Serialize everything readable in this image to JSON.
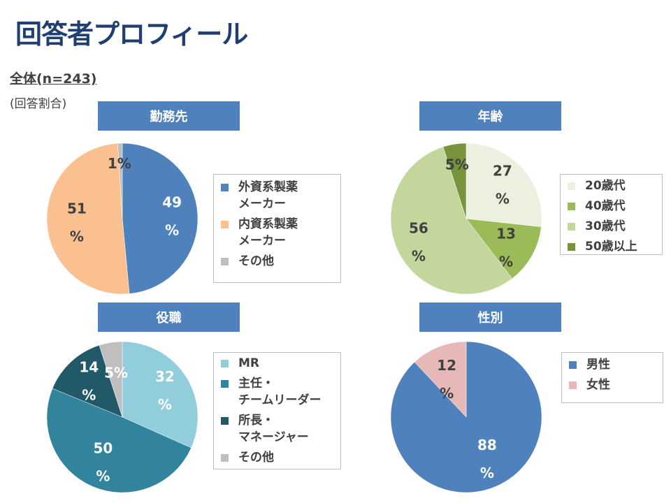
{
  "title": "回答者プロフィール",
  "subtitle": "全体(n=243)",
  "note": "(回答割合)",
  "chart_data": [
    {
      "type": "pie",
      "title": "勤務先",
      "label_color": "#ffffff",
      "slices": [
        {
          "name": "外資系製薬\nメーカー",
          "value": 49,
          "label": "49\n%",
          "color": "#4f81bd",
          "label_color": "#ffffff"
        },
        {
          "name": "内資系製薬\nメーカー",
          "value": 51,
          "label": "51\n%",
          "color": "#fac090",
          "label_color": "#404040"
        },
        {
          "name": "その他",
          "value": 1,
          "label": "1%",
          "color": "#bfbfbf",
          "label_color": "#404040"
        }
      ],
      "legend_position": "right"
    },
    {
      "type": "pie",
      "title": "年齢",
      "slices": [
        {
          "name": "20歳代",
          "value": 27,
          "label": "27\n%",
          "color": "#ebf1de",
          "label_color": "#404040"
        },
        {
          "name": "40歳代",
          "value": 13,
          "label": "13\n%",
          "color": "#9bbb59",
          "label_color": "#404040"
        },
        {
          "name": "30歳代",
          "value": 56,
          "label": "56\n%",
          "color": "#c3d69b",
          "label_color": "#404040"
        },
        {
          "name": "50歳以上",
          "value": 5,
          "label": "5%",
          "color": "#77933c",
          "label_color": "#404040"
        }
      ],
      "legend_position": "right"
    },
    {
      "type": "pie",
      "title": "役職",
      "slices": [
        {
          "name": "MR",
          "value": 32,
          "label": "32\n%",
          "color": "#92cddc",
          "label_color": "#ffffff"
        },
        {
          "name": "主任・\nチームリーダー",
          "value": 50,
          "label": "50\n%",
          "color": "#31849b",
          "label_color": "#ffffff"
        },
        {
          "name": "所長・\nマネージャー",
          "value": 14,
          "label": "14\n%",
          "color": "#215968",
          "label_color": "#ffffff"
        },
        {
          "name": "その他",
          "value": 5,
          "label": "5%",
          "color": "#bfbfbf",
          "label_color": "#ffffff"
        }
      ],
      "legend_position": "right"
    },
    {
      "type": "pie",
      "title": "性別",
      "slices": [
        {
          "name": "男性",
          "value": 88,
          "label": "88\n%",
          "color": "#4f81bd",
          "label_color": "#ffffff"
        },
        {
          "name": "女性",
          "value": 12,
          "label": "12\n%",
          "color": "#e6b9b8",
          "label_color": "#404040"
        }
      ],
      "legend_position": "right"
    }
  ]
}
